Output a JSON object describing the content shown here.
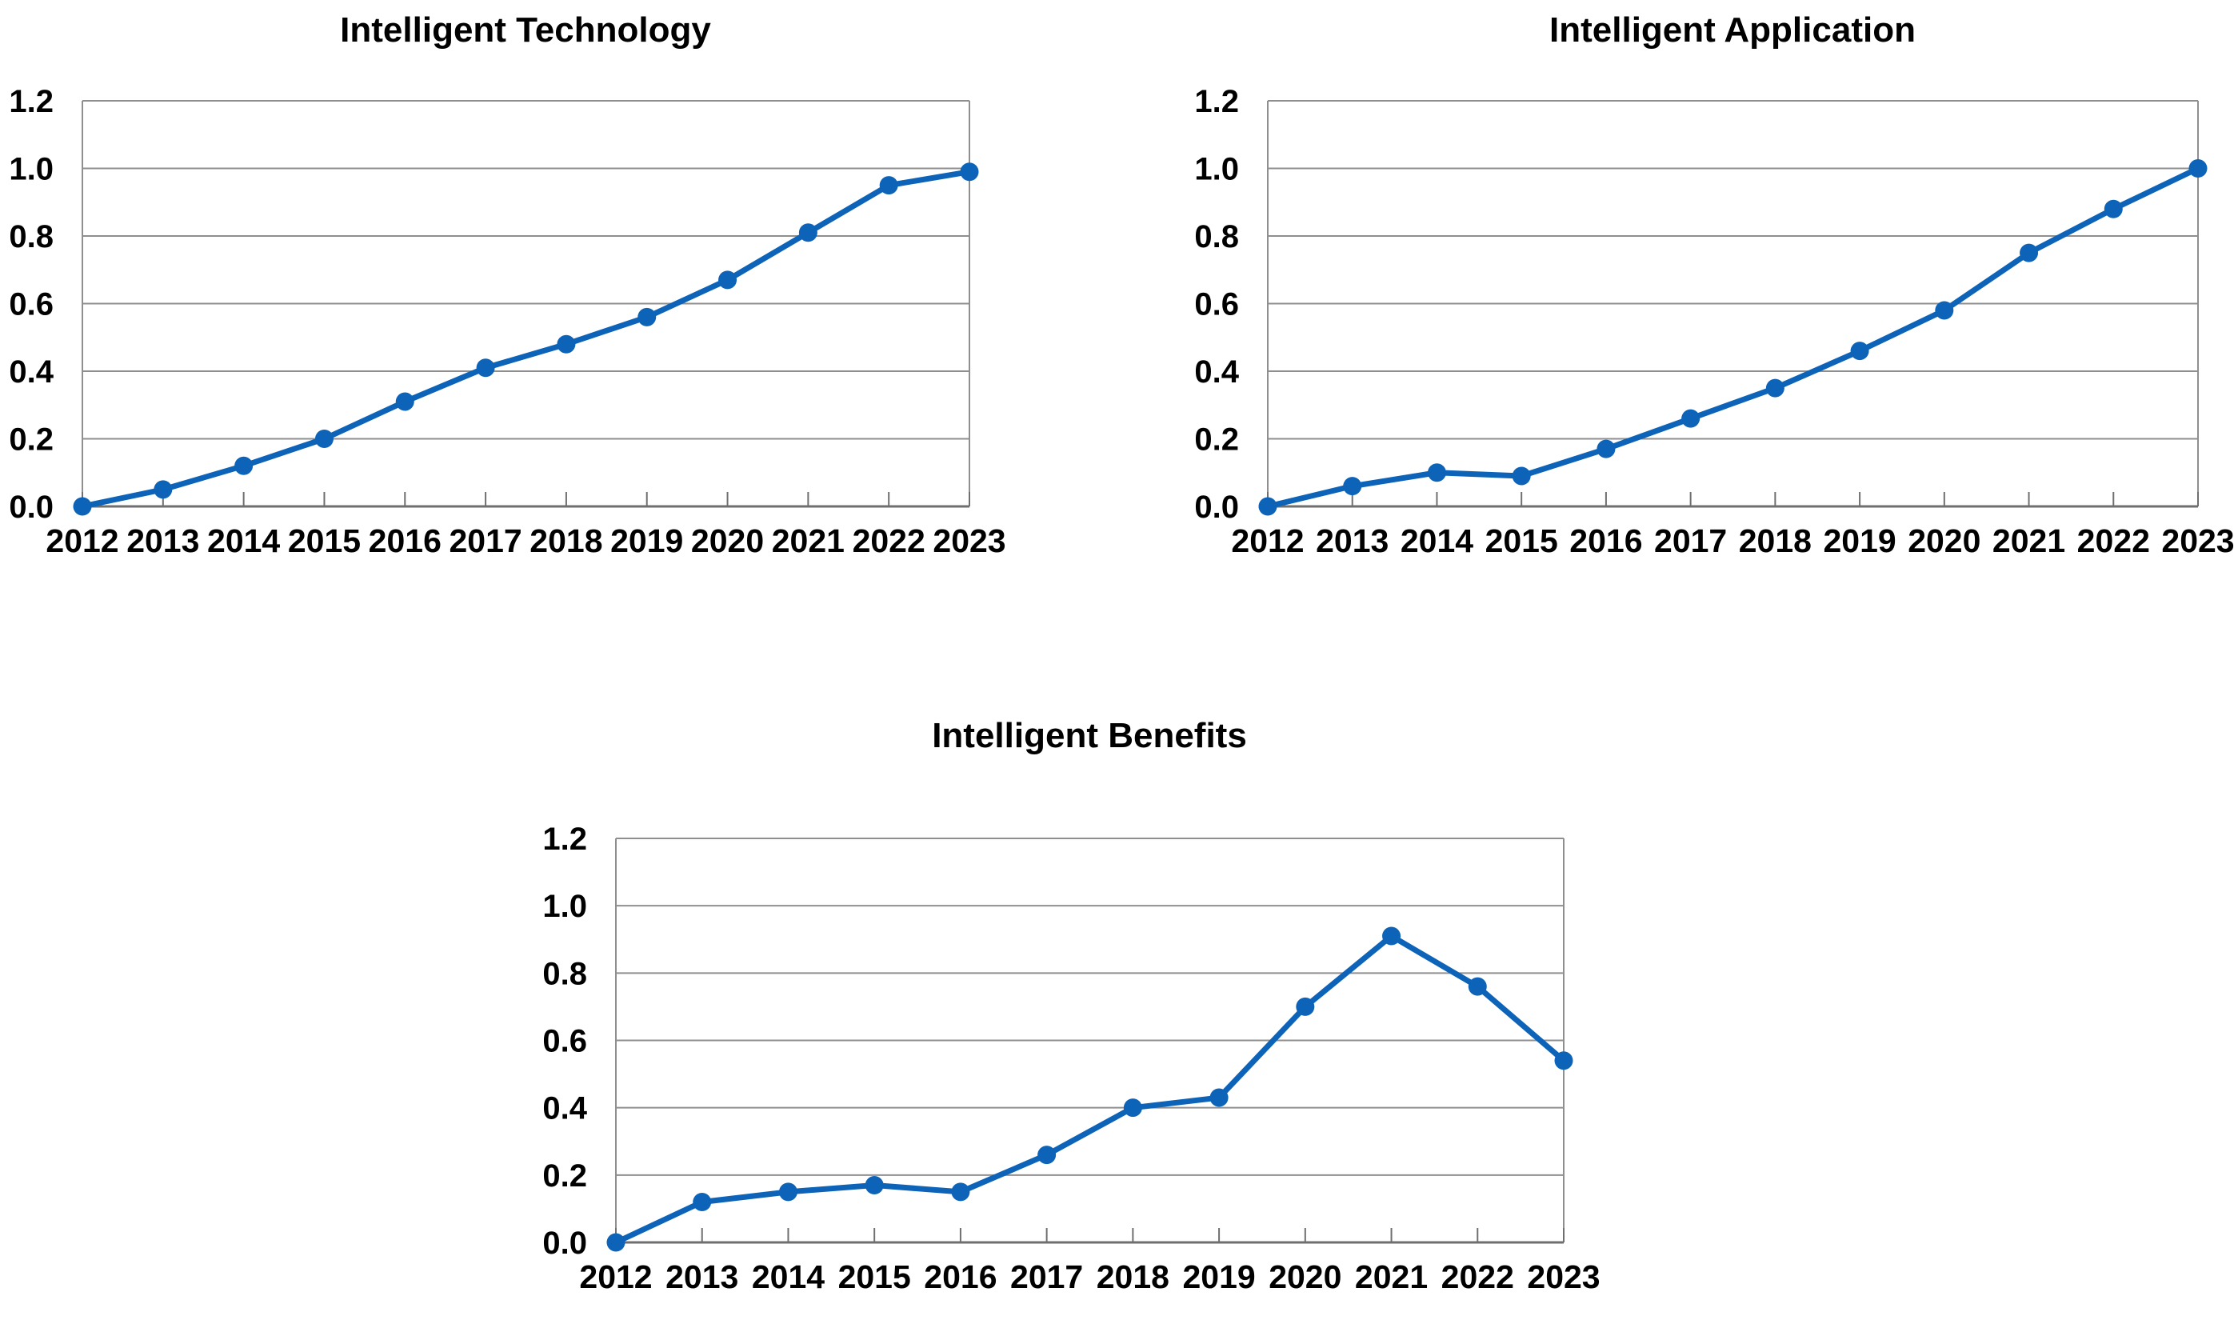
{
  "figure": {
    "background": "#ffffff"
  },
  "colors": {
    "line": "#0d63b8",
    "marker": "#0d63b8",
    "grid": "#8f8f8f",
    "axis": "#6f6f6f",
    "text": "#000000"
  },
  "chart_data": [
    {
      "type": "line",
      "title": "Intelligent Technology",
      "x_categories": [
        "2012",
        "2013",
        "2014",
        "2015",
        "2016",
        "2017",
        "2018",
        "2019",
        "2020",
        "2021",
        "2022",
        "2023"
      ],
      "values": [
        0.0,
        0.05,
        0.12,
        0.2,
        0.31,
        0.41,
        0.48,
        0.56,
        0.67,
        0.81,
        0.95,
        0.99
      ],
      "ylim": [
        0.0,
        1.2
      ],
      "ytick_labels": [
        "0.0",
        "0.2",
        "0.4",
        "0.6",
        "0.8",
        "1.0",
        "1.2"
      ],
      "grid": true,
      "legend": "none",
      "marker": "circle"
    },
    {
      "type": "line",
      "title": "Intelligent Application",
      "x_categories": [
        "2012",
        "2013",
        "2014",
        "2015",
        "2016",
        "2017",
        "2018",
        "2019",
        "2020",
        "2021",
        "2022",
        "2023"
      ],
      "values": [
        0.0,
        0.06,
        0.1,
        0.09,
        0.17,
        0.26,
        0.35,
        0.46,
        0.58,
        0.75,
        0.88,
        1.0
      ],
      "ylim": [
        0.0,
        1.2
      ],
      "ytick_labels": [
        "0.0",
        "0.2",
        "0.4",
        "0.6",
        "0.8",
        "1.0",
        "1.2"
      ],
      "grid": true,
      "legend": "none",
      "marker": "circle"
    },
    {
      "type": "line",
      "title": "Intelligent Benefits",
      "x_categories": [
        "2012",
        "2013",
        "2014",
        "2015",
        "2016",
        "2017",
        "2018",
        "2019",
        "2020",
        "2021",
        "2022",
        "2023"
      ],
      "values": [
        0.0,
        0.12,
        0.15,
        0.17,
        0.15,
        0.26,
        0.4,
        0.43,
        0.7,
        0.91,
        0.76,
        0.54
      ],
      "ylim": [
        0.0,
        1.2
      ],
      "ytick_labels": [
        "0.0",
        "0.2",
        "0.4",
        "0.6",
        "0.8",
        "1.0",
        "1.2"
      ],
      "grid": true,
      "legend": "none",
      "marker": "circle"
    }
  ]
}
